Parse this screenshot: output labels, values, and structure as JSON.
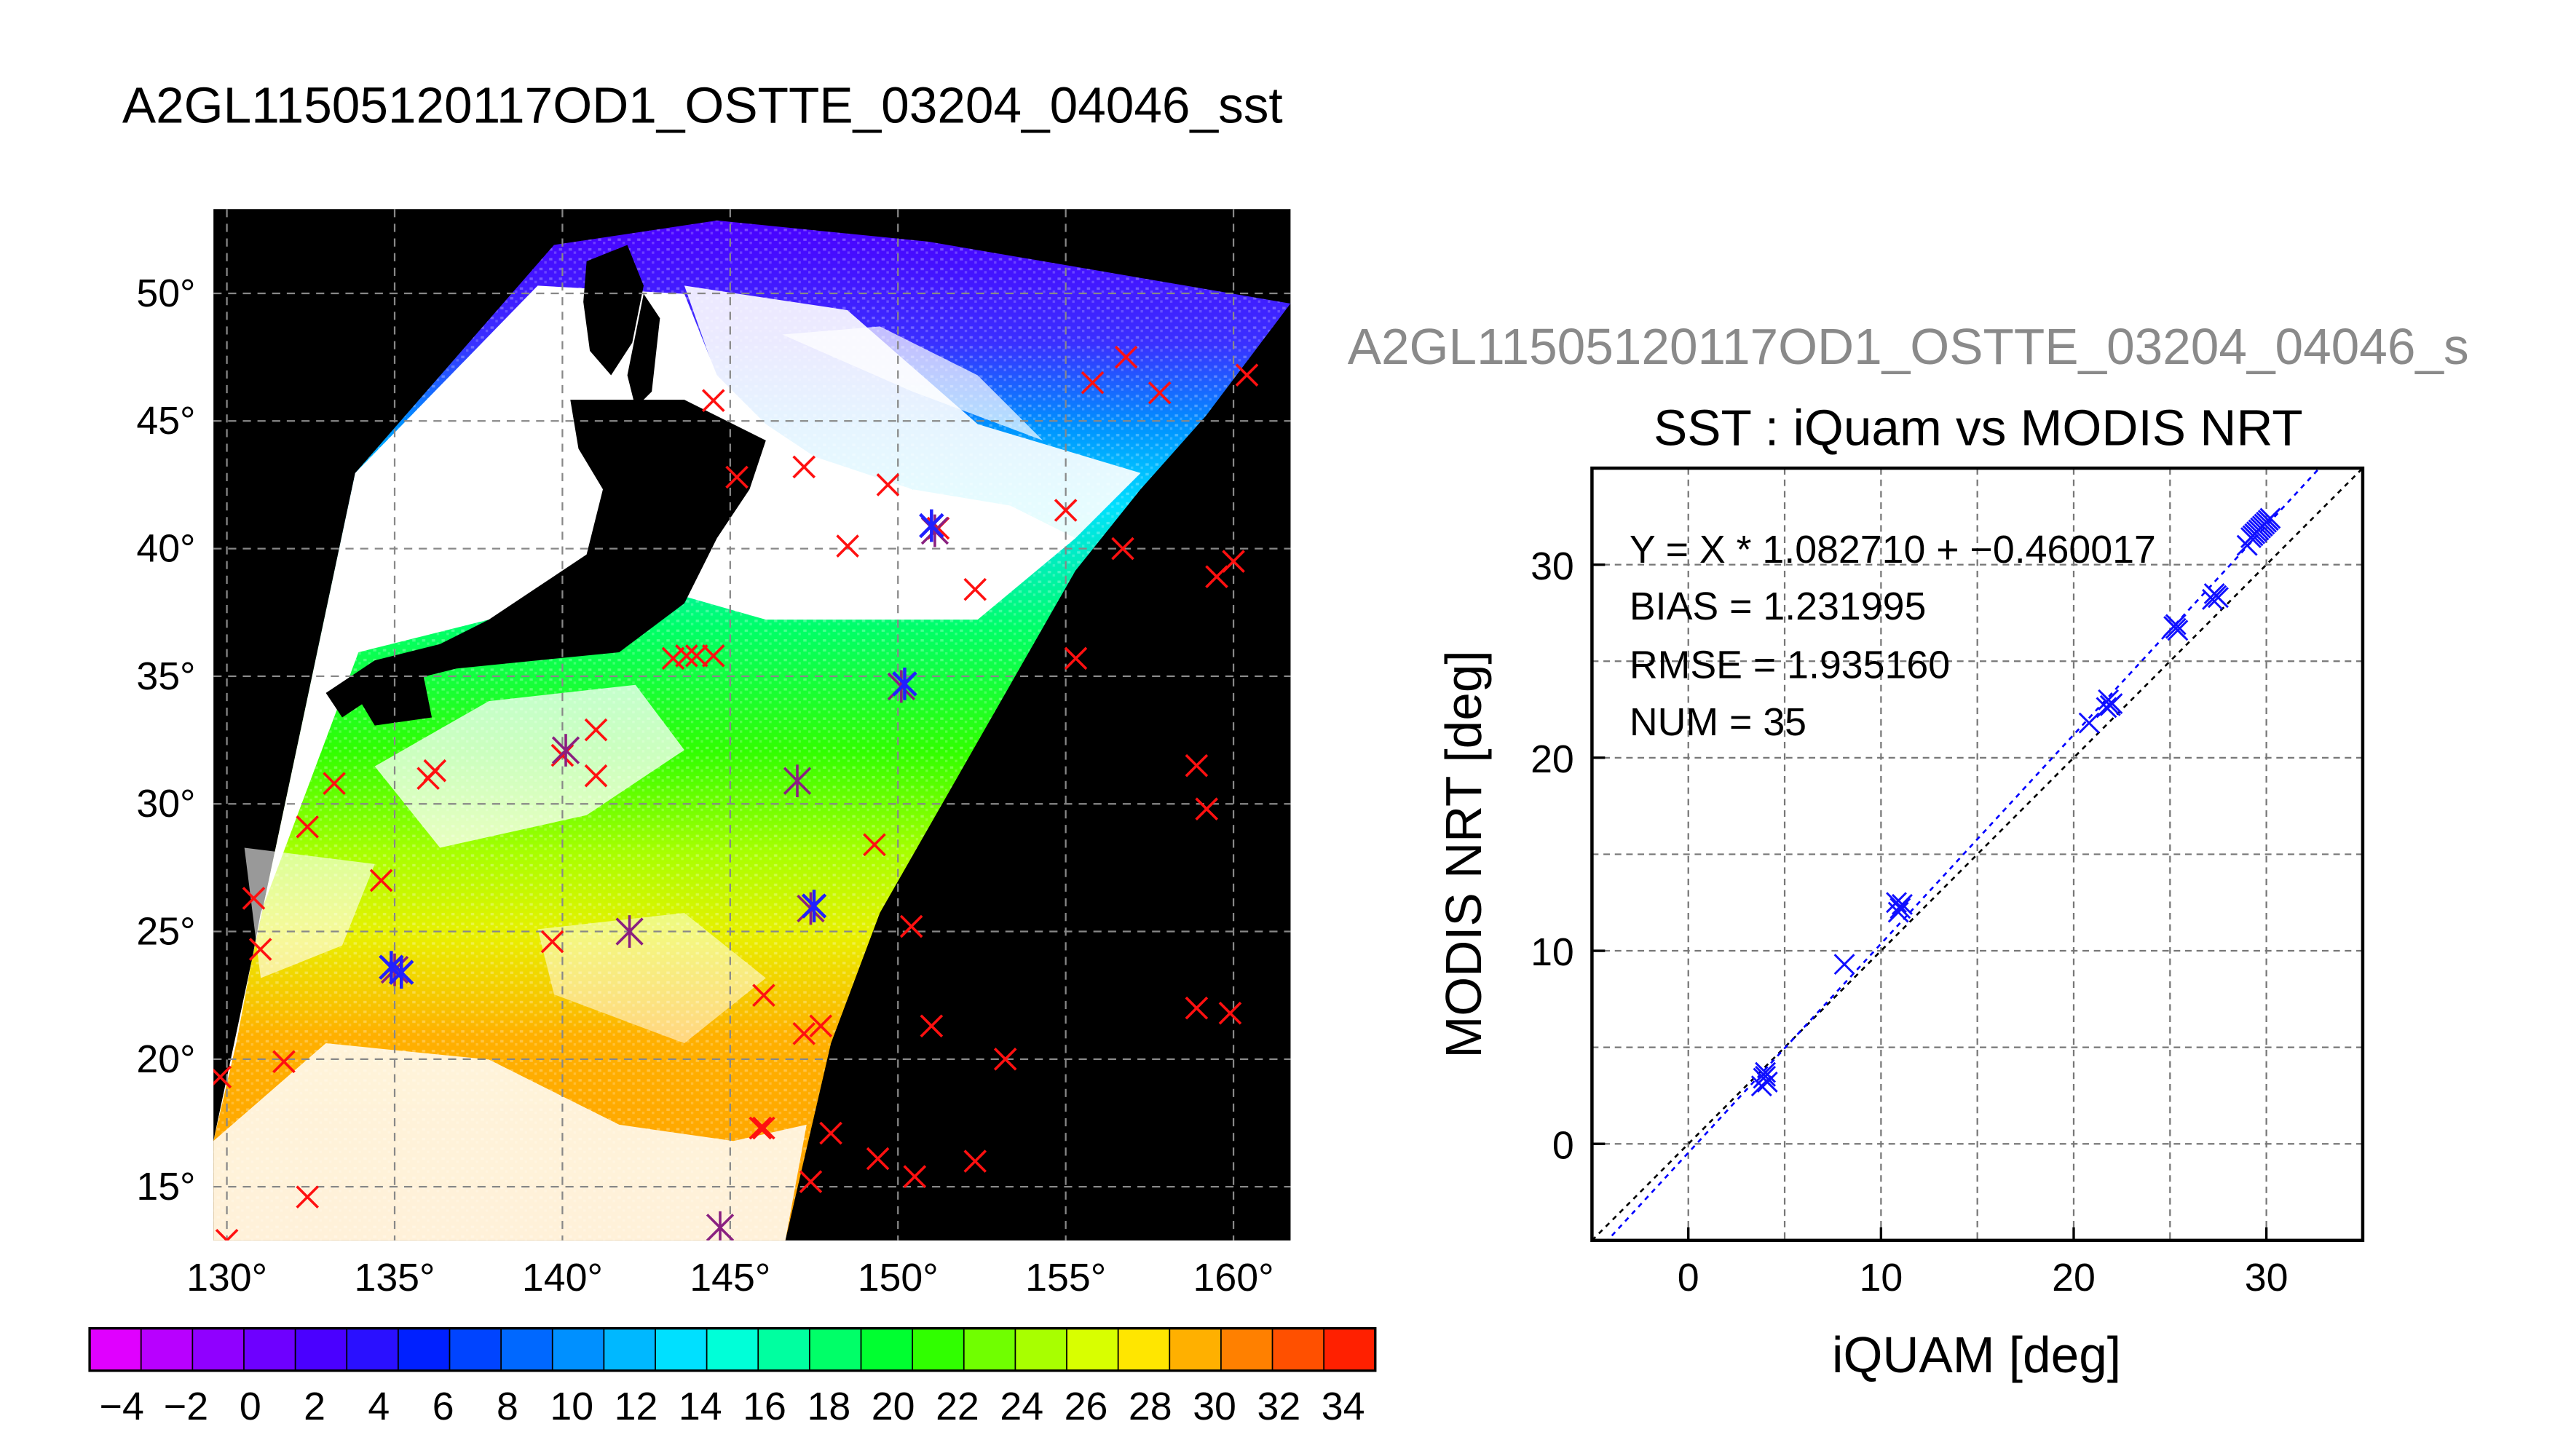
{
  "main_title": "A2GL11505120117OD1_OSTTE_03204_04046_sst",
  "second_title": "A2GL11505120117OD1_OSTTE_03204_04046_s",
  "map": {
    "lon_ticks": [
      "130°",
      "135°",
      "140°",
      "145°",
      "150°",
      "155°",
      "160°"
    ],
    "lat_ticks": [
      "15°",
      "20°",
      "25°",
      "30°",
      "35°",
      "40°",
      "45°",
      "50°"
    ],
    "lon_range": [
      129.6,
      161.7
    ],
    "lat_range": [
      12.9,
      53.3
    ],
    "colorbar": {
      "min": -5,
      "max": 35,
      "tick_labels": [
        "−4",
        "−2",
        "0",
        "2",
        "4",
        "6",
        "8",
        "10",
        "12",
        "14",
        "16",
        "18",
        "20",
        "22",
        "24",
        "26",
        "28",
        "30",
        "32",
        "34"
      ],
      "colors": [
        "#e000ff",
        "#b800ff",
        "#9000ff",
        "#6e00ff",
        "#4a00ff",
        "#2a10ff",
        "#0020ff",
        "#0044ff",
        "#0068ff",
        "#0090ff",
        "#00b8ff",
        "#00e0ff",
        "#00ffd8",
        "#00ffa0",
        "#00ff68",
        "#00ff30",
        "#30ff00",
        "#70ff00",
        "#a8ff00",
        "#d8ff00",
        "#ffe600",
        "#ffb000",
        "#ff8000",
        "#ff5000",
        "#ff2000"
      ]
    },
    "markers_red": [
      [
        144.5,
        45.8
      ],
      [
        145.2,
        42.8
      ],
      [
        147.2,
        43.2
      ],
      [
        149.7,
        42.5
      ],
      [
        151.2,
        40.8
      ],
      [
        152.3,
        38.4
      ],
      [
        148.5,
        40.1
      ],
      [
        155,
        41.5
      ],
      [
        156.7,
        40
      ],
      [
        159.5,
        38.9
      ],
      [
        160,
        39.5
      ],
      [
        160.4,
        46.8
      ],
      [
        157.8,
        46.1
      ],
      [
        156.8,
        47.5
      ],
      [
        155.8,
        46.5
      ],
      [
        155.3,
        35.7
      ],
      [
        143.3,
        35.7
      ],
      [
        143.7,
        35.8
      ],
      [
        144.0,
        35.8
      ],
      [
        144.5,
        35.8
      ],
      [
        141.0,
        32.9
      ],
      [
        140,
        31.9
      ],
      [
        141.0,
        31.1
      ],
      [
        136.0,
        31.0
      ],
      [
        136.2,
        31.3
      ],
      [
        133.2,
        30.8
      ],
      [
        132.4,
        29.1
      ],
      [
        134.6,
        27.0
      ],
      [
        130.8,
        26.3
      ],
      [
        131.0,
        24.3
      ],
      [
        131.7,
        19.9
      ],
      [
        129.8,
        19.3
      ],
      [
        132.4,
        14.6
      ],
      [
        130.0,
        12.9
      ],
      [
        139.7,
        24.6
      ],
      [
        146.0,
        22.5
      ],
      [
        147.7,
        21.3
      ],
      [
        147.2,
        21.0
      ],
      [
        150.4,
        25.2
      ],
      [
        151.0,
        21.3
      ],
      [
        153.2,
        20.0
      ],
      [
        149.3,
        28.4
      ],
      [
        148.0,
        17.1
      ],
      [
        145.9,
        17.3
      ],
      [
        146.0,
        17.3
      ],
      [
        147.4,
        15.2
      ],
      [
        149.4,
        16.1
      ],
      [
        150.5,
        15.4
      ],
      [
        152.3,
        16.0
      ],
      [
        158.9,
        31.5
      ],
      [
        159.2,
        29.8
      ],
      [
        158.9,
        22.0
      ],
      [
        159.9,
        21.8
      ],
      [
        150.2,
        34.7
      ]
    ],
    "markers_purple": [
      [
        151.1,
        40.7
      ],
      [
        150.1,
        34.6
      ],
      [
        147.0,
        30.9
      ],
      [
        147.4,
        25.9
      ],
      [
        140.1,
        32.1
      ],
      [
        142.0,
        25.0
      ],
      [
        135.0,
        23.5
      ],
      [
        144.7,
        13.4
      ]
    ],
    "markers_blue": [
      [
        135.2,
        23.4
      ],
      [
        134.9,
        23.6
      ],
      [
        151.0,
        40.9
      ],
      [
        147.5,
        26.0
      ],
      [
        150.2,
        34.7
      ]
    ]
  },
  "scatter": {
    "title": "SST : iQuam vs MODIS NRT",
    "xlabel": "iQUAM [deg]",
    "ylabel": "MODIS NRT [deg]",
    "x_ticks": [
      "0",
      "10",
      "20",
      "30"
    ],
    "y_ticks": [
      "0",
      "10",
      "20",
      "30"
    ],
    "stats": [
      "Y = X * 1.082710 + −0.460017",
      "BIAS = 1.231995",
      "RMSE = 1.935160",
      "NUM = 35"
    ]
  },
  "chart_data": {
    "type": "scatter",
    "title": "SST : iQuam vs MODIS NRT",
    "xlabel": "iQUAM [deg]",
    "ylabel": "MODIS NRT [deg]",
    "xlim": [
      -5,
      35
    ],
    "ylim": [
      -5,
      35
    ],
    "grid": true,
    "points": [
      [
        3.8,
        3.0
      ],
      [
        4.0,
        3.5
      ],
      [
        4.0,
        3.7
      ],
      [
        4.1,
        3.2
      ],
      [
        3.9,
        3.4
      ],
      [
        8.1,
        9.3
      ],
      [
        10.8,
        12.5
      ],
      [
        11.0,
        12.2
      ],
      [
        11.1,
        12.4
      ],
      [
        10.9,
        12.0
      ],
      [
        20.8,
        21.8
      ],
      [
        21.7,
        22.6
      ],
      [
        21.8,
        23.0
      ],
      [
        21.9,
        22.7
      ],
      [
        22.0,
        22.8
      ],
      [
        25.2,
        26.8
      ],
      [
        25.3,
        26.9
      ],
      [
        25.4,
        26.6
      ],
      [
        25.3,
        26.7
      ],
      [
        27.2,
        28.2
      ],
      [
        27.4,
        28.4
      ],
      [
        27.5,
        28.3
      ],
      [
        27.3,
        28.5
      ],
      [
        29.2,
        31.4
      ],
      [
        29.3,
        31.5
      ],
      [
        29.0,
        31.0
      ],
      [
        29.4,
        31.6
      ],
      [
        29.5,
        31.7
      ],
      [
        29.6,
        31.8
      ],
      [
        29.7,
        31.9
      ],
      [
        29.8,
        32.0
      ],
      [
        29.9,
        32.1
      ],
      [
        30.0,
        32.2
      ],
      [
        30.1,
        32.3
      ],
      [
        30.2,
        32.4
      ]
    ],
    "fit": {
      "slope": 1.08271,
      "intercept": -0.460017
    },
    "stats": {
      "bias": 1.231995,
      "rmse": 1.93516,
      "num": 35
    }
  }
}
